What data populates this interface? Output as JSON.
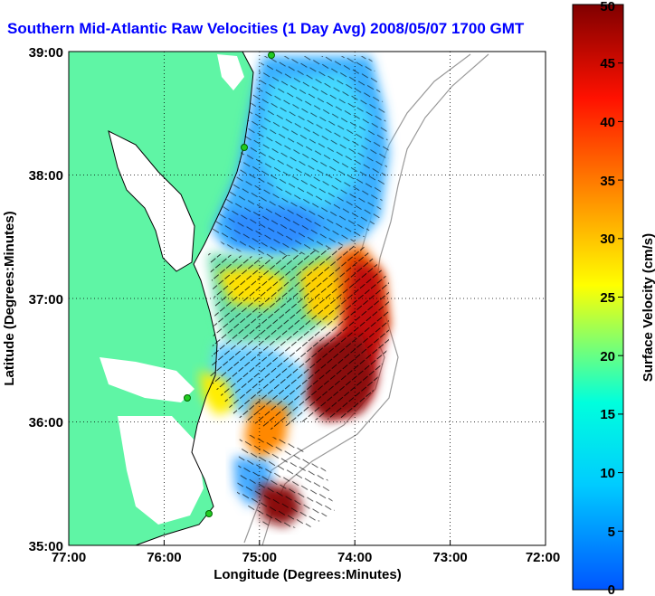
{
  "title": "Southern Mid-Atlantic Raw Velocities (1 Day Avg) 2008/05/07 1700 GMT",
  "map": {
    "xlabel": "Longitude (Degrees:Minutes)",
    "ylabel": "Latitude (Degrees:Minutes)",
    "x_ticks": [
      "77:00",
      "76:00",
      "75:00",
      "74:00",
      "73:00",
      "72:00"
    ],
    "y_ticks": [
      "39:00",
      "38:00",
      "37:00",
      "36:00",
      "35:00"
    ],
    "xlim": [
      -77,
      -72
    ],
    "ylim": [
      35,
      39
    ],
    "grid": "dotted",
    "land_color": "#5ff5a5",
    "coast_color": "#000000",
    "station_color": "#22cc22"
  },
  "colorbar": {
    "label": "Surface Velocity (cm/s)",
    "ticks": [
      "0",
      "5",
      "10",
      "15",
      "20",
      "25",
      "30",
      "35",
      "40",
      "45",
      "50"
    ],
    "range": [
      0,
      50
    ],
    "colors": [
      "#0055ff",
      "#00ccff",
      "#00ffdd",
      "#ffff00",
      "#ff8800",
      "#ff1100",
      "#800000"
    ]
  }
}
